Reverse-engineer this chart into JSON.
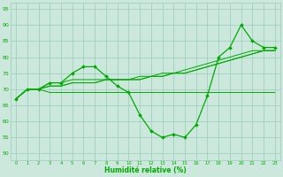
{
  "x": [
    0,
    1,
    2,
    3,
    4,
    5,
    6,
    7,
    8,
    9,
    10,
    11,
    12,
    13,
    14,
    15,
    16,
    17,
    18,
    19,
    20,
    21,
    22,
    23
  ],
  "main_line": [
    67,
    70,
    70,
    72,
    72,
    75,
    77,
    77,
    74,
    71,
    69,
    62,
    57,
    55,
    56,
    55,
    59,
    68,
    80,
    83,
    90,
    85,
    83,
    83
  ],
  "trend1": [
    67,
    70,
    70,
    72,
    72,
    73,
    73,
    73,
    73,
    73,
    73,
    74,
    74,
    75,
    75,
    76,
    77,
    78,
    79,
    80,
    81,
    82,
    82,
    82
  ],
  "trend2": [
    67,
    70,
    70,
    71,
    71,
    72,
    72,
    72,
    73,
    73,
    73,
    73,
    74,
    74,
    75,
    75,
    76,
    77,
    78,
    79,
    80,
    81,
    82,
    82
  ],
  "trend3": [
    67,
    70,
    70,
    71,
    71,
    72,
    72,
    72,
    73,
    73,
    73,
    73,
    74,
    74,
    75,
    75,
    76,
    77,
    78,
    79,
    80,
    81,
    82,
    82
  ],
  "flat_line": [
    67,
    70,
    70,
    69,
    69,
    69,
    69,
    69,
    69,
    69,
    69,
    69,
    69,
    69,
    69,
    69,
    69,
    69,
    69,
    69,
    69,
    69,
    69,
    69
  ],
  "line_color": "#00aa00",
  "bg_color": "#cce8dc",
  "grid_color": "#99ccbb",
  "ylabel_vals": [
    50,
    55,
    60,
    65,
    70,
    75,
    80,
    85,
    90,
    95
  ],
  "xlabel": "Humidité relative (%)",
  "ylim": [
    48,
    97
  ],
  "xlim": [
    -0.5,
    23.5
  ]
}
